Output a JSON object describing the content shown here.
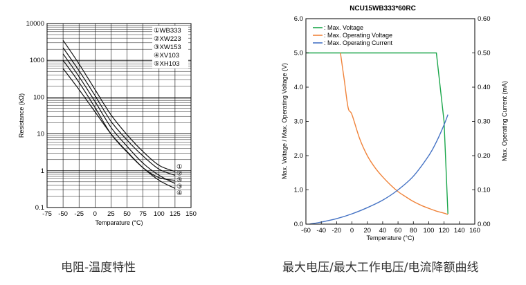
{
  "captions": {
    "left": "电阻-温度特性",
    "right": "最大电压/最大工作电压/电流降额曲线"
  },
  "chart_data": [
    {
      "type": "line",
      "title": "",
      "xlabel": "Temparature (°C)",
      "ylabel": "Resistance (kΩ)",
      "xlim": [
        -75,
        150
      ],
      "ylim": [
        0.1,
        10000
      ],
      "yscale": "log",
      "xticks": [
        -75,
        -50,
        -25,
        0,
        25,
        50,
        75,
        100,
        125,
        150
      ],
      "yticks": [
        0.1,
        1,
        10,
        100,
        1000,
        10000
      ],
      "xtick_labels": [
        "-75",
        "-50",
        "-25",
        "0",
        "25",
        "50",
        "75",
        "100",
        "125",
        "150"
      ],
      "ytick_labels": [
        "0.1",
        "1",
        "10",
        "100",
        "1000",
        "10000"
      ],
      "legend_placement": "top-right",
      "grid": true,
      "line_color": "#111111",
      "series": [
        {
          "name": "WB333",
          "marker": "①",
          "x": [
            -50,
            -25,
            0,
            25,
            50,
            75,
            100,
            125
          ],
          "y": [
            3500,
            800,
            160,
            33,
            9.5,
            3.3,
            1.4,
            0.95
          ]
        },
        {
          "name": "XW223",
          "marker": "②",
          "x": [
            -50,
            -25,
            0,
            25,
            50,
            75,
            100,
            125
          ],
          "y": [
            2200,
            520,
            110,
            22,
            6.8,
            2.5,
            1.1,
            0.75
          ]
        },
        {
          "name": "XW153",
          "marker": "③",
          "x": [
            -50,
            -25,
            0,
            25,
            50,
            75,
            100,
            125
          ],
          "y": [
            1500,
            360,
            76,
            15,
            4.6,
            1.6,
            0.75,
            0.45
          ]
        },
        {
          "name": "XV103",
          "marker": "④",
          "x": [
            -50,
            -25,
            0,
            25,
            50,
            75,
            100,
            125
          ],
          "y": [
            600,
            160,
            40,
            10,
            3.3,
            1.2,
            0.55,
            0.33
          ]
        },
        {
          "name": "XH103",
          "marker": "⑤",
          "x": [
            -50,
            -25,
            0,
            25,
            50,
            75,
            100,
            125
          ],
          "y": [
            1000,
            250,
            52,
            10,
            3.2,
            1.2,
            0.65,
            0.55
          ]
        }
      ]
    },
    {
      "type": "line",
      "title": "NCU15WB333*60RC",
      "xlabel": "Temperature (°C)",
      "ylabel": "Max. Voltage / Max. Operating Voltage (V)",
      "y2label": "Max. Operating Current (mA)",
      "xlim": [
        -60,
        160
      ],
      "ylim": [
        0,
        6
      ],
      "y2lim": [
        0,
        0.6
      ],
      "xticks": [
        -60,
        -40,
        -20,
        0,
        20,
        40,
        60,
        80,
        100,
        120,
        140,
        160
      ],
      "xtick_labels": [
        "-60",
        "-40",
        "-20",
        "0",
        "20",
        "40",
        "60",
        "80",
        "100",
        "120",
        "140",
        "160"
      ],
      "yticks": [
        0,
        1,
        2,
        3,
        4,
        5,
        6
      ],
      "ytick_labels": [
        "0.0",
        "1.0",
        "2.0",
        "3.0",
        "4.0",
        "5.0",
        "6.0"
      ],
      "y2ticks": [
        0,
        0.1,
        0.2,
        0.3,
        0.4,
        0.5,
        0.6
      ],
      "y2tick_labels": [
        "0.00",
        "0.10",
        "0.20",
        "0.30",
        "0.40",
        "0.50",
        "0.60"
      ],
      "legend_placement": "top-left",
      "grid": false,
      "series": [
        {
          "name": ": Max. Voltage",
          "axis": "left",
          "color": "#1aa64a",
          "x": [
            -60,
            110,
            120,
            125
          ],
          "y": [
            5.0,
            5.0,
            3.0,
            0.3
          ]
        },
        {
          "name": ": Max. Operating Voltage",
          "axis": "left",
          "color": "#f0833a",
          "x": [
            -15,
            -10,
            -5,
            0,
            10,
            20,
            30,
            40,
            50,
            60,
            70,
            80,
            90,
            100,
            110,
            120,
            125
          ],
          "y": [
            5.0,
            4.2,
            3.4,
            3.2,
            2.5,
            2.0,
            1.65,
            1.38,
            1.15,
            0.95,
            0.8,
            0.66,
            0.55,
            0.46,
            0.38,
            0.32,
            0.28
          ]
        },
        {
          "name": ": Max. Operating Current",
          "axis": "right",
          "color": "#4472c4",
          "x": [
            -55,
            -40,
            -20,
            0,
            20,
            40,
            60,
            80,
            100,
            110,
            120,
            125
          ],
          "y": [
            0.0,
            0.006,
            0.016,
            0.03,
            0.048,
            0.07,
            0.1,
            0.14,
            0.2,
            0.24,
            0.29,
            0.32
          ]
        }
      ]
    }
  ]
}
